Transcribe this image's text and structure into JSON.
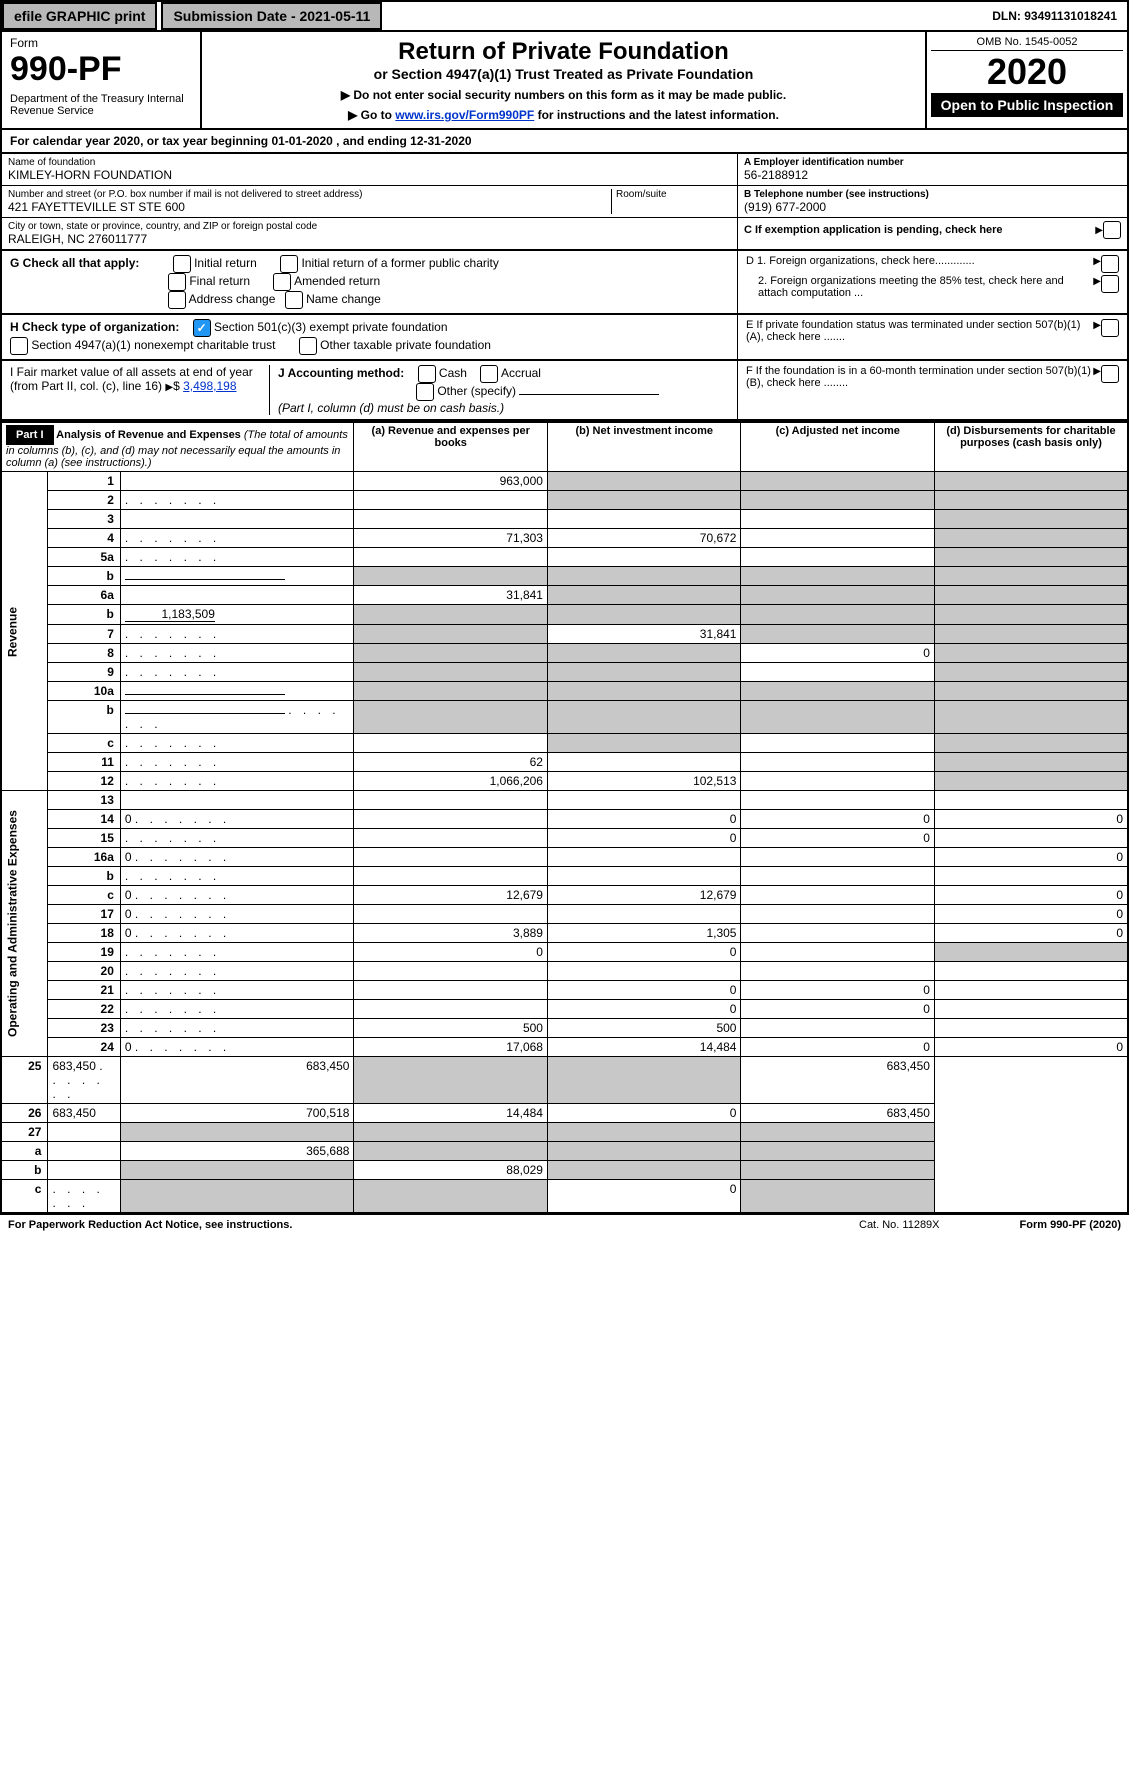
{
  "topbar": {
    "efile": "efile GRAPHIC print",
    "submission": "Submission Date - 2021-05-11",
    "dln": "DLN: 93491131018241"
  },
  "header": {
    "form": "Form",
    "formnum": "990-PF",
    "dept": "Department of the Treasury\nInternal Revenue Service",
    "title": "Return of Private Foundation",
    "subtitle": "or Section 4947(a)(1) Trust Treated as Private Foundation",
    "instr1": "▶ Do not enter social security numbers on this form as it may be made public.",
    "instr2_pre": "▶ Go to ",
    "instr2_link": "www.irs.gov/Form990PF",
    "instr2_post": " for instructions and the latest information.",
    "omb": "OMB No. 1545-0052",
    "year": "2020",
    "open": "Open to Public Inspection"
  },
  "cal": "For calendar year 2020, or tax year beginning 01-01-2020            , and ending 12-31-2020",
  "foundation": {
    "name_lbl": "Name of foundation",
    "name": "KIMLEY-HORN FOUNDATION",
    "addr_lbl": "Number and street (or P.O. box number if mail is not delivered to street address)",
    "addr": "421 FAYETTEVILLE ST STE 600",
    "room_lbl": "Room/suite",
    "city_lbl": "City or town, state or province, country, and ZIP or foreign postal code",
    "city": "RALEIGH, NC  276011777"
  },
  "right": {
    "A_lbl": "A Employer identification number",
    "A_val": "56-2188912",
    "B_lbl": "B Telephone number (see instructions)",
    "B_val": "(919) 677-2000",
    "C_lbl": "C If exemption application is pending, check here",
    "D1": "D 1. Foreign organizations, check here.............",
    "D2": "2. Foreign organizations meeting the 85% test, check here and attach computation ...",
    "E": "E  If private foundation status was terminated under section 507(b)(1)(A), check here .......",
    "F": "F  If the foundation is in a 60-month termination under section 507(b)(1)(B), check here ........"
  },
  "G": {
    "lbl": "G Check all that apply:",
    "opts": [
      "Initial return",
      "Initial return of a former public charity",
      "Final return",
      "Amended return",
      "Address change",
      "Name change"
    ]
  },
  "H": {
    "lbl": "H Check type of organization:",
    "o1": "Section 501(c)(3) exempt private foundation",
    "o2": "Section 4947(a)(1) nonexempt charitable trust",
    "o3": "Other taxable private foundation"
  },
  "I": {
    "lbl": "I Fair market value of all assets at end of year (from Part II, col. (c), line 16)",
    "val": "3,498,198"
  },
  "J": {
    "lbl": "J Accounting method:",
    "cash": "Cash",
    "accrual": "Accrual",
    "other": "Other (specify)",
    "note": "(Part I, column (d) must be on cash basis.)"
  },
  "part1": {
    "title": "Part I",
    "head": "Analysis of Revenue and Expenses",
    "head_note": "(The total of amounts in columns (b), (c), and (d) may not necessarily equal the amounts in column (a) (see instructions).)",
    "cols": {
      "a": "(a) Revenue and expenses per books",
      "b": "(b) Net investment income",
      "c": "(c) Adjusted net income",
      "d": "(d) Disbursements for charitable purposes (cash basis only)"
    }
  },
  "side": {
    "rev": "Revenue",
    "exp": "Operating and Administrative Expenses"
  },
  "lines": [
    {
      "n": "1",
      "d": "",
      "a": "963,000",
      "b": "",
      "c": "",
      "sb": true,
      "sc": true,
      "sd": true
    },
    {
      "n": "2",
      "d": "",
      "a": "",
      "b": "",
      "c": "",
      "sb": true,
      "sc": true,
      "sd": true,
      "dots": true
    },
    {
      "n": "3",
      "d": "",
      "a": "",
      "b": "",
      "c": "",
      "sd": true
    },
    {
      "n": "4",
      "d": "",
      "a": "71,303",
      "b": "70,672",
      "c": "",
      "sd": true,
      "dots": true
    },
    {
      "n": "5a",
      "d": "",
      "a": "",
      "b": "",
      "c": "",
      "sd": true,
      "dots": true
    },
    {
      "n": "b",
      "d": "",
      "a": "",
      "b": "",
      "c": "",
      "sa": true,
      "sb": true,
      "sc": true,
      "sd": true,
      "uline": true
    },
    {
      "n": "6a",
      "d": "",
      "a": "31,841",
      "b": "",
      "c": "",
      "sb": true,
      "sc": true,
      "sd": true
    },
    {
      "n": "b",
      "d": "",
      "uval": "1,183,509",
      "a": "",
      "b": "",
      "c": "",
      "sa": true,
      "sb": true,
      "sc": true,
      "sd": true
    },
    {
      "n": "7",
      "d": "",
      "a": "",
      "b": "31,841",
      "c": "",
      "sa": true,
      "sc": true,
      "sd": true,
      "dots": true
    },
    {
      "n": "8",
      "d": "",
      "a": "",
      "b": "",
      "c": "0",
      "sa": true,
      "sb": true,
      "sd": true,
      "dots": true
    },
    {
      "n": "9",
      "d": "",
      "a": "",
      "b": "",
      "c": "",
      "sa": true,
      "sb": true,
      "sd": true,
      "dots": true
    },
    {
      "n": "10a",
      "d": "",
      "a": "",
      "b": "",
      "c": "",
      "sa": true,
      "sb": true,
      "sc": true,
      "sd": true,
      "uline": true
    },
    {
      "n": "b",
      "d": "",
      "a": "",
      "b": "",
      "c": "",
      "sa": true,
      "sb": true,
      "sc": true,
      "sd": true,
      "uline": true,
      "dots": true
    },
    {
      "n": "c",
      "d": "",
      "a": "",
      "b": "",
      "c": "",
      "sb": true,
      "sd": true,
      "dots": true
    },
    {
      "n": "11",
      "d": "",
      "a": "62",
      "b": "",
      "c": "",
      "sd": true,
      "dots": true
    },
    {
      "n": "12",
      "d": "",
      "a": "1,066,206",
      "b": "102,513",
      "c": "",
      "sd": true,
      "dots": true
    },
    {
      "n": "13",
      "d": "",
      "a": "",
      "b": "",
      "c": ""
    },
    {
      "n": "14",
      "d": "0",
      "a": "",
      "b": "0",
      "c": "0",
      "dots": true
    },
    {
      "n": "15",
      "d": "",
      "a": "",
      "b": "0",
      "c": "0",
      "dots": true
    },
    {
      "n": "16a",
      "d": "0",
      "a": "",
      "b": "",
      "c": "",
      "dots": true
    },
    {
      "n": "b",
      "d": "",
      "a": "",
      "b": "",
      "c": "",
      "dots": true
    },
    {
      "n": "c",
      "d": "0",
      "a": "12,679",
      "b": "12,679",
      "c": "",
      "dots": true
    },
    {
      "n": "17",
      "d": "0",
      "a": "",
      "b": "",
      "c": "",
      "dots": true
    },
    {
      "n": "18",
      "d": "0",
      "a": "3,889",
      "b": "1,305",
      "c": "",
      "dots": true
    },
    {
      "n": "19",
      "d": "",
      "a": "0",
      "b": "0",
      "c": "",
      "sd": true,
      "dots": true
    },
    {
      "n": "20",
      "d": "",
      "a": "",
      "b": "",
      "c": "",
      "dots": true
    },
    {
      "n": "21",
      "d": "",
      "a": "",
      "b": "0",
      "c": "0",
      "dots": true
    },
    {
      "n": "22",
      "d": "",
      "a": "",
      "b": "0",
      "c": "0",
      "dots": true
    },
    {
      "n": "23",
      "d": "",
      "a": "500",
      "b": "500",
      "c": "",
      "dots": true
    },
    {
      "n": "24",
      "d": "0",
      "a": "17,068",
      "b": "14,484",
      "c": "0",
      "dots": true
    },
    {
      "n": "25",
      "d": "683,450",
      "a": "683,450",
      "b": "",
      "c": "",
      "sb": true,
      "sc": true,
      "dots": true
    },
    {
      "n": "26",
      "d": "683,450",
      "a": "700,518",
      "b": "14,484",
      "c": "0"
    },
    {
      "n": "27",
      "d": "",
      "a": "",
      "b": "",
      "c": "",
      "sa": true,
      "sb": true,
      "sc": true,
      "sd": true,
      "noside": true
    },
    {
      "n": "a",
      "d": "",
      "a": "365,688",
      "b": "",
      "c": "",
      "sb": true,
      "sc": true,
      "sd": true,
      "noside": true
    },
    {
      "n": "b",
      "d": "",
      "a": "",
      "b": "88,029",
      "c": "",
      "sa": true,
      "sc": true,
      "sd": true,
      "noside": true
    },
    {
      "n": "c",
      "d": "",
      "a": "",
      "b": "",
      "c": "0",
      "sa": true,
      "sb": true,
      "sd": true,
      "noside": true,
      "dots": true
    }
  ],
  "footer": {
    "left": "For Paperwork Reduction Act Notice, see instructions.",
    "cat": "Cat. No. 11289X",
    "right": "Form 990-PF (2020)"
  }
}
